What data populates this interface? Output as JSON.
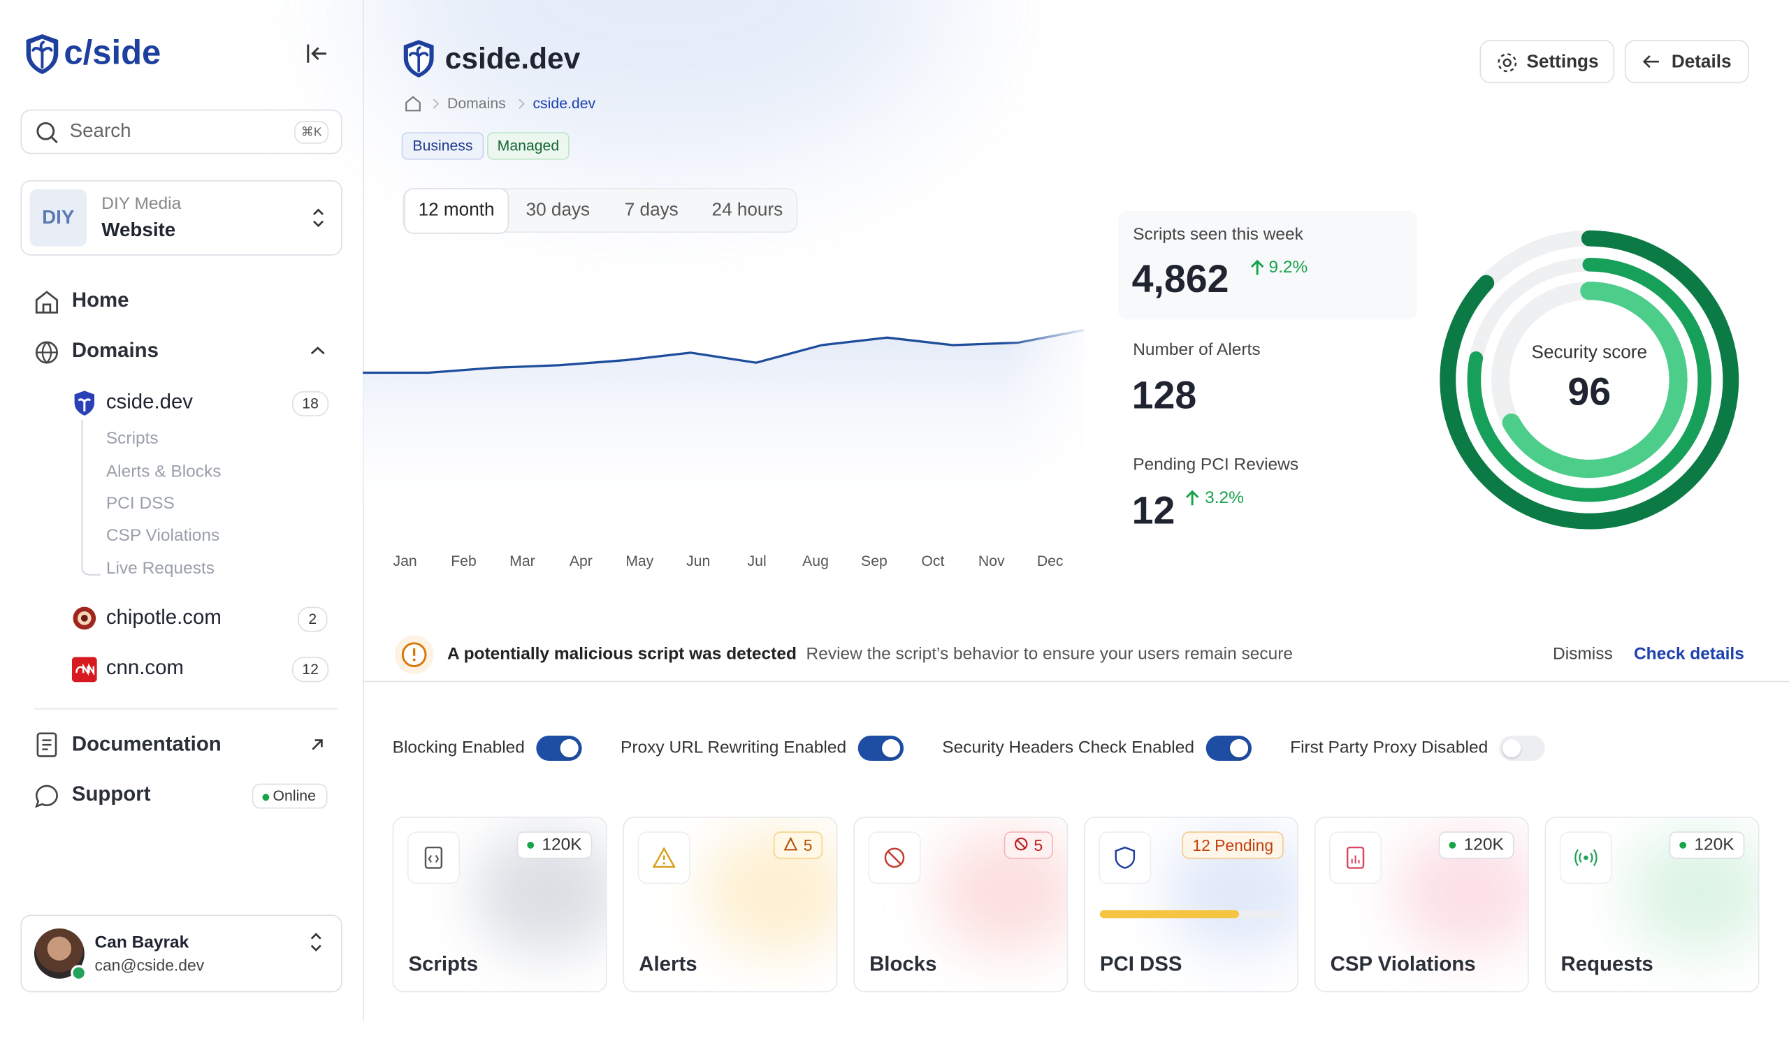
{
  "sidebar": {
    "logo": "c/side",
    "search": {
      "placeholder": "Search",
      "shortcut": "⌘K"
    },
    "workspace": {
      "badge": "DIY",
      "org": "DIY Media",
      "name": "Website"
    },
    "nav": {
      "home": "Home",
      "domains": "Domains",
      "domain_list": [
        {
          "name": "cside.dev",
          "count": 18,
          "children": [
            "Scripts",
            "Alerts & Blocks",
            "PCI DSS",
            "CSP Violations",
            "Live Requests"
          ]
        },
        {
          "name": "chipotle.com",
          "count": 2
        },
        {
          "name": "cnn.com",
          "count": 12
        }
      ],
      "documentation": "Documentation",
      "support": "Support",
      "status": "Online"
    },
    "user": {
      "name": "Can Bayrak",
      "email": "can@cside.dev"
    }
  },
  "header": {
    "title": "cside.dev",
    "breadcrumb": [
      "Domains",
      "cside.dev"
    ],
    "tags": [
      "Business",
      "Managed"
    ],
    "buttons": [
      "Settings",
      "Details"
    ]
  },
  "chart": {
    "type": "line",
    "ranges": [
      "12 month",
      "30 days",
      "7 days",
      "24 hours"
    ],
    "categories": [
      "Jan",
      "Feb",
      "Mar",
      "Apr",
      "May",
      "Jun",
      "Jul",
      "Aug",
      "Sep",
      "Oct",
      "Nov",
      "Dec"
    ],
    "values": [
      56,
      56,
      58,
      59,
      61,
      64,
      60,
      67,
      70,
      67,
      68,
      73
    ],
    "ylim": [
      0,
      100
    ],
    "color": "#1e4d9c"
  },
  "stats": [
    {
      "label": "Scripts seen this week",
      "value": "4,862",
      "change": "9.2%"
    },
    {
      "label": "Number of Alerts",
      "value": "128"
    },
    {
      "label": "Pending PCI Reviews",
      "value": "12",
      "change": "3.2%"
    }
  ],
  "score": {
    "label": "Security score",
    "value": 96,
    "rings": [
      87,
      78,
      67
    ]
  },
  "alert": {
    "title": "A potentially malicious script was detected",
    "text": "Review the script’s behavior to ensure your users remain secure",
    "actions": [
      "Dismiss",
      "Check details"
    ]
  },
  "toggles": [
    {
      "label": "Blocking Enabled",
      "on": true
    },
    {
      "label": "Proxy URL Rewriting Enabled",
      "on": true
    },
    {
      "label": "Security Headers Check Enabled",
      "on": true
    },
    {
      "label": "First Party Proxy Disabled",
      "on": false
    }
  ],
  "cards": [
    {
      "title": "Scripts",
      "badge": "120K"
    },
    {
      "title": "Alerts",
      "badge": "5"
    },
    {
      "title": "Blocks",
      "badge": "5"
    },
    {
      "title": "PCI DSS",
      "badge": "12 Pending",
      "progress": 75
    },
    {
      "title": "CSP Violations",
      "badge": "120K"
    },
    {
      "title": "Requests",
      "badge": "120K"
    }
  ]
}
